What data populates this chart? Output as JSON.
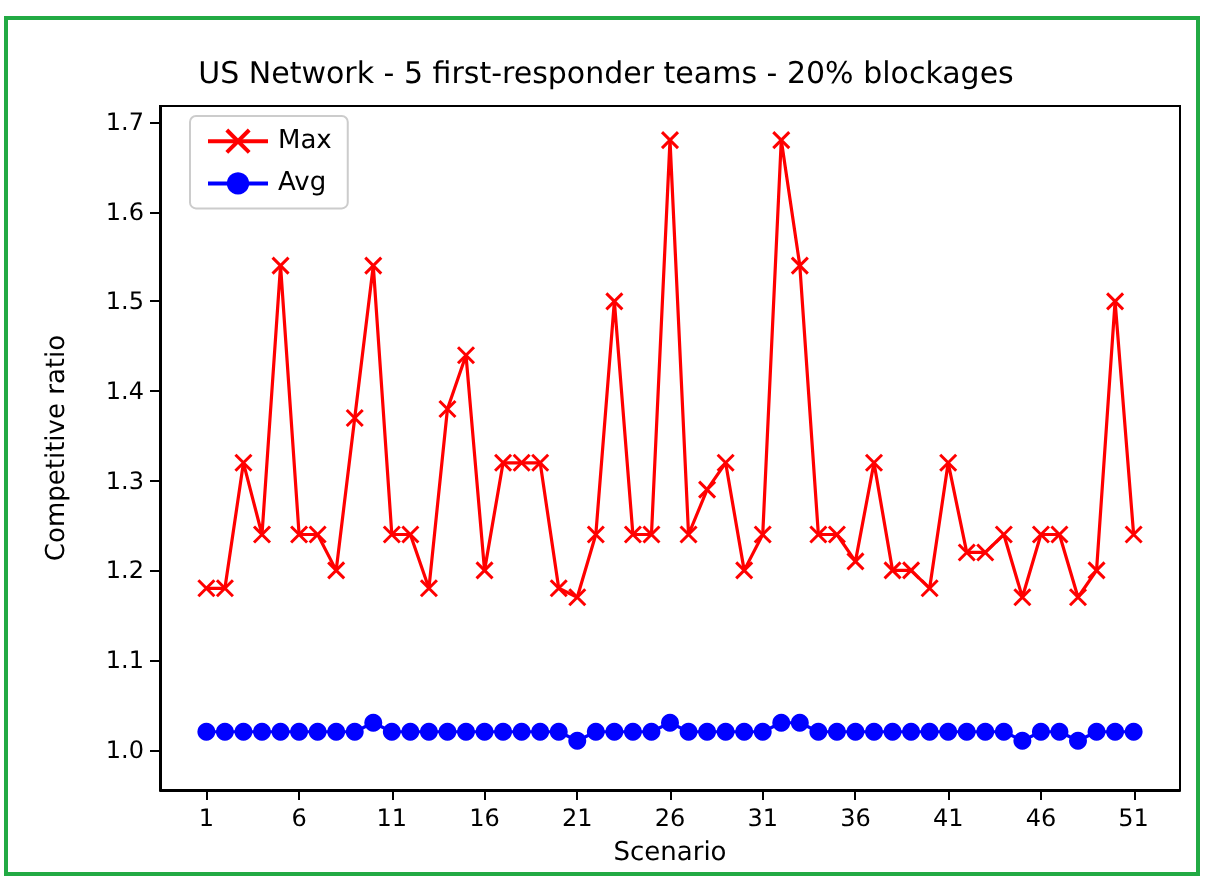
{
  "chart_data": {
    "type": "line",
    "title": "US Network - 5 first-responder teams - 20% blockages",
    "xlabel": "Scenario",
    "ylabel": "Competitive ratio",
    "x": [
      1,
      2,
      3,
      4,
      5,
      6,
      7,
      8,
      9,
      10,
      11,
      12,
      13,
      14,
      15,
      16,
      17,
      18,
      19,
      20,
      21,
      22,
      23,
      24,
      25,
      26,
      27,
      28,
      29,
      30,
      31,
      32,
      33,
      34,
      35,
      36,
      37,
      38,
      39,
      40,
      41,
      42,
      43,
      44,
      45,
      46,
      47,
      48,
      49,
      50,
      51
    ],
    "series": [
      {
        "name": "Max",
        "color": "#ff0000",
        "marker": "cross",
        "values": [
          1.18,
          1.18,
          1.32,
          1.24,
          1.54,
          1.24,
          1.24,
          1.2,
          1.37,
          1.54,
          1.24,
          1.24,
          1.18,
          1.38,
          1.44,
          1.2,
          1.32,
          1.32,
          1.32,
          1.18,
          1.17,
          1.24,
          1.5,
          1.24,
          1.24,
          1.68,
          1.24,
          1.29,
          1.32,
          1.2,
          1.24,
          1.68,
          1.54,
          1.24,
          1.24,
          1.21,
          1.32,
          1.2,
          1.2,
          1.18,
          1.32,
          1.22,
          1.22,
          1.24,
          1.17,
          1.24,
          1.24,
          1.17,
          1.2,
          1.5,
          1.24
        ]
      },
      {
        "name": "Avg",
        "color": "#0000ff",
        "marker": "circle",
        "values": [
          1.02,
          1.02,
          1.02,
          1.02,
          1.02,
          1.02,
          1.02,
          1.02,
          1.02,
          1.03,
          1.02,
          1.02,
          1.02,
          1.02,
          1.02,
          1.02,
          1.02,
          1.02,
          1.02,
          1.02,
          1.01,
          1.02,
          1.02,
          1.02,
          1.02,
          1.03,
          1.02,
          1.02,
          1.02,
          1.02,
          1.02,
          1.03,
          1.03,
          1.02,
          1.02,
          1.02,
          1.02,
          1.02,
          1.02,
          1.02,
          1.02,
          1.02,
          1.02,
          1.02,
          1.01,
          1.02,
          1.02,
          1.01,
          1.02,
          1.02,
          1.02
        ]
      }
    ],
    "xlim": [
      -1.5,
      53.5
    ],
    "xticks": [
      1,
      6,
      11,
      16,
      21,
      26,
      31,
      36,
      41,
      46,
      51
    ],
    "ylim": [
      0.955,
      1.718
    ],
    "yticks": [
      {
        "value": 1.0,
        "label": "1.0"
      },
      {
        "value": 1.1,
        "label": "1.1"
      },
      {
        "value": 1.2,
        "label": "1.2"
      },
      {
        "value": 1.3,
        "label": "1.3"
      },
      {
        "value": 1.4,
        "label": "1.4"
      },
      {
        "value": 1.5,
        "label": "1.5"
      },
      {
        "value": 1.6,
        "label": "1.6"
      },
      {
        "value": 1.7,
        "label": "1.7"
      }
    ],
    "legend": "top left",
    "grid": false
  }
}
